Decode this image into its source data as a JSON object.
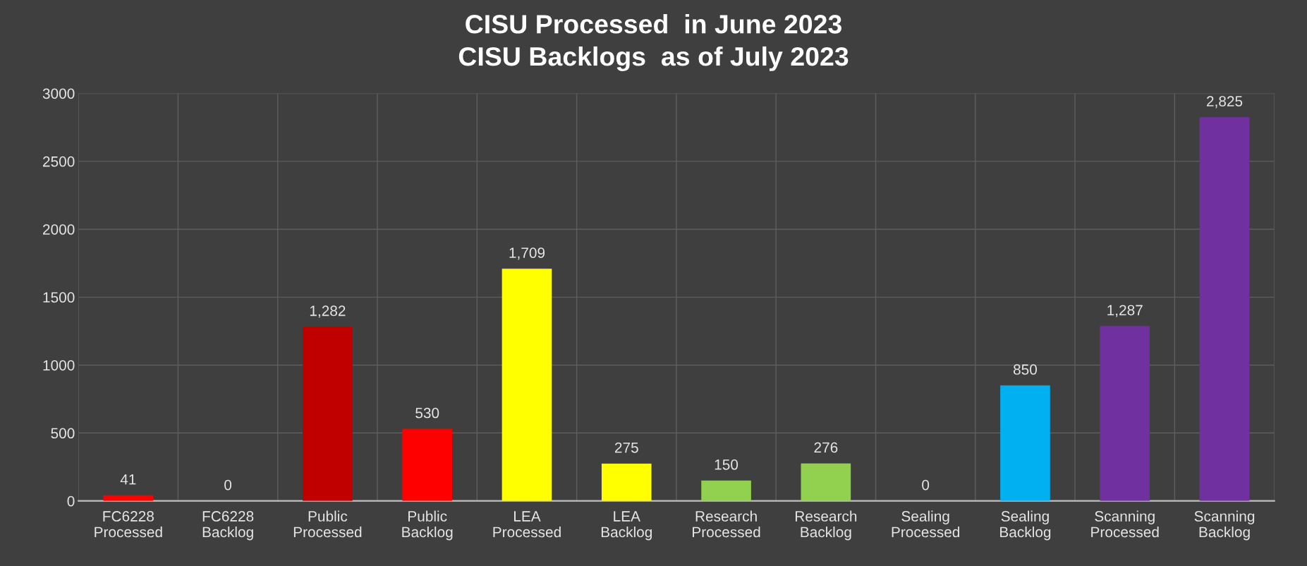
{
  "chart_data": {
    "type": "bar",
    "title": "CISU Processed  in June 2023\nCISU Backlogs  as of July 2023",
    "categories": [
      "FC6228\nProcessed",
      "FC6228\nBacklog",
      "Public\nProcessed",
      "Public\nBacklog",
      "LEA\nProcessed",
      "LEA\nBacklog",
      "Research\nProcessed",
      "Research\nBacklog",
      "Sealing\nProcessed",
      "Sealing\nBacklog",
      "Scanning\nProcessed",
      "Scanning\nBacklog"
    ],
    "values": [
      41,
      0,
      1282,
      530,
      1709,
      275,
      150,
      276,
      0,
      850,
      1287,
      2825
    ],
    "value_labels": [
      "41",
      "0",
      "1,282",
      "530",
      "1,709",
      "275",
      "150",
      "276",
      "0",
      "850",
      "1,287",
      "2,825"
    ],
    "colors": [
      "#ff0000",
      "#ff0000",
      "#c00000",
      "#ff0000",
      "#ffff00",
      "#ffff00",
      "#92d050",
      "#92d050",
      "#92d050",
      "#00b0f0",
      "#7030a0",
      "#7030a0"
    ],
    "ylim": [
      0,
      3000
    ],
    "yticks": [
      0,
      500,
      1000,
      1500,
      2000,
      2500,
      3000
    ],
    "grid": true
  }
}
